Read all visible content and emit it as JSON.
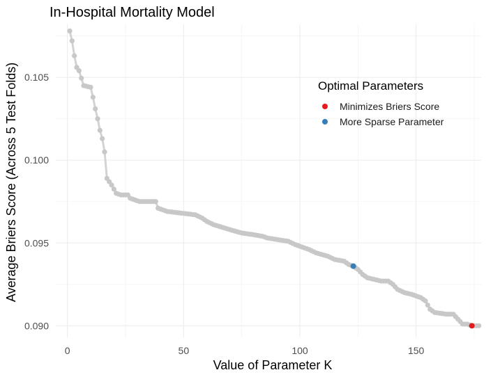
{
  "chart_data": {
    "type": "line",
    "title": "In-Hospital Mortality Model",
    "xlabel": "Value of Parameter K",
    "ylabel": "Average Briers Score (Across 5 Test Folds)",
    "xlim": [
      -5,
      178
    ],
    "ylim": [
      0.0893,
      0.1082
    ],
    "xticks": [
      0,
      50,
      100,
      150
    ],
    "yticks": [
      0.09,
      0.095,
      0.1,
      0.105
    ],
    "ytick_labels": [
      "0.090",
      "0.095",
      "0.100",
      "0.105"
    ],
    "grid": true,
    "line_color": "#d3d3d3",
    "point_color": "#c8c8c8",
    "legend": {
      "title": "Optimal Parameters",
      "position": "top-right",
      "entries": [
        {
          "label": "Minimizes Briers Score",
          "color": "#e41a1c"
        },
        {
          "label": "More Sparse Parameter",
          "color": "#377eb8"
        }
      ]
    },
    "highlights": [
      {
        "name": "Minimizes Briers Score",
        "x": 174,
        "y": 0.09,
        "color": "#e41a1c"
      },
      {
        "name": "More Sparse Parameter",
        "x": 123,
        "y": 0.0936,
        "color": "#377eb8"
      }
    ],
    "series_knots": [
      [
        1,
        0.1078
      ],
      [
        2,
        0.1072
      ],
      [
        3,
        0.1063
      ],
      [
        4,
        0.1056
      ],
      [
        5,
        0.1054
      ],
      [
        7,
        0.1045
      ],
      [
        10,
        0.1044
      ],
      [
        11,
        0.1038
      ],
      [
        12,
        0.1031
      ],
      [
        13,
        0.1025
      ],
      [
        14,
        0.1018
      ],
      [
        15,
        0.1013
      ],
      [
        16,
        0.1005
      ],
      [
        17,
        0.0989
      ],
      [
        19,
        0.0985
      ],
      [
        21,
        0.098
      ],
      [
        23,
        0.0979
      ],
      [
        26,
        0.0979
      ],
      [
        27,
        0.0977
      ],
      [
        31,
        0.0975
      ],
      [
        38,
        0.0975
      ],
      [
        39,
        0.0971
      ],
      [
        43,
        0.0969
      ],
      [
        55,
        0.0967
      ],
      [
        58,
        0.0965
      ],
      [
        60,
        0.0963
      ],
      [
        63,
        0.0961
      ],
      [
        70,
        0.0958
      ],
      [
        75,
        0.0956
      ],
      [
        80,
        0.0955
      ],
      [
        84,
        0.0954
      ],
      [
        86,
        0.0953
      ],
      [
        95,
        0.0951
      ],
      [
        98,
        0.0949
      ],
      [
        104,
        0.0946
      ],
      [
        107,
        0.0944
      ],
      [
        112,
        0.0942
      ],
      [
        115,
        0.094
      ],
      [
        119,
        0.0939
      ],
      [
        121,
        0.0937
      ],
      [
        123,
        0.0936
      ],
      [
        125,
        0.0934
      ],
      [
        127,
        0.0931
      ],
      [
        129,
        0.0929
      ],
      [
        132,
        0.0928
      ],
      [
        135,
        0.0927
      ],
      [
        138,
        0.0927
      ],
      [
        140,
        0.0925
      ],
      [
        142,
        0.0922
      ],
      [
        145,
        0.092
      ],
      [
        148,
        0.0919
      ],
      [
        152,
        0.0917
      ],
      [
        154,
        0.0915
      ],
      [
        156,
        0.091
      ],
      [
        158,
        0.0908
      ],
      [
        163,
        0.0907
      ],
      [
        166,
        0.0907
      ],
      [
        168,
        0.0904
      ],
      [
        170,
        0.0901
      ],
      [
        172,
        0.0901
      ],
      [
        174,
        0.09
      ],
      [
        177,
        0.09
      ]
    ]
  }
}
